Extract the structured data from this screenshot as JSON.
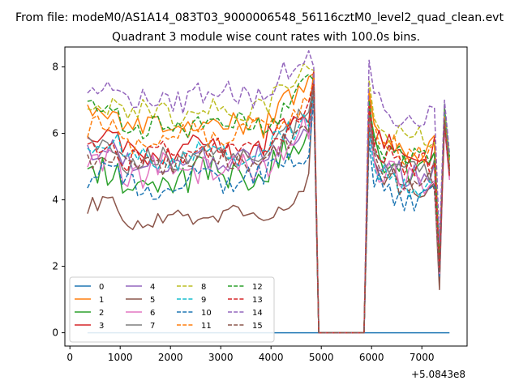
{
  "figure_title": "From file: modeM0/AS1A14_083T03_9000006548_56116cztM0_level2_quad_clean.evt",
  "chart_data": {
    "type": "line",
    "title": "Quadrant 3 module wise count rates with 100.0s bins.",
    "xlabel": "",
    "ylabel": "",
    "x_offset_label": "+5.0843e8",
    "xlim": [
      -100,
      7900
    ],
    "ylim": [
      -0.4,
      8.6
    ],
    "x_ticks": [
      0,
      1000,
      2000,
      3000,
      4000,
      5000,
      6000,
      7000
    ],
    "x_tick_labels": [
      "0",
      "1000",
      "2000",
      "3000",
      "4000",
      "5000",
      "6000",
      "7000"
    ],
    "y_ticks": [
      0,
      2,
      4,
      6,
      8
    ],
    "y_tick_labels": [
      "0",
      "2",
      "4",
      "6",
      "8"
    ],
    "legend_location": "lower-left",
    "legend_columns": 4,
    "x_segments": [
      {
        "start": 350,
        "end": 4850,
        "step": 100
      },
      {
        "start": 4950,
        "end": 5850,
        "step": 100
      },
      {
        "start": 5950,
        "end": 7550,
        "step": 100
      }
    ],
    "series": [
      {
        "name": "0",
        "color": "#1f77b4",
        "dash": "solid",
        "base": 0.0,
        "amp": 0.0,
        "phase": 0,
        "peak": 0.0,
        "post": 0.0,
        "dip": 0.0,
        "late": 0.0
      },
      {
        "name": "1",
        "color": "#ff7f0e",
        "dash": "solid",
        "base": 6.3,
        "amp": 0.35,
        "phase": 1,
        "peak": 7.8,
        "post": 7.3,
        "dip": 2.3,
        "late": 6.6
      },
      {
        "name": "2",
        "color": "#2ca02c",
        "dash": "solid",
        "base": 4.8,
        "amp": 0.45,
        "phase": 2,
        "peak": 7.6,
        "post": 6.7,
        "dip": 1.8,
        "late": 6.8
      },
      {
        "name": "3",
        "color": "#d62728",
        "dash": "solid",
        "base": 5.6,
        "amp": 0.4,
        "phase": 3,
        "peak": 7.9,
        "post": 7.1,
        "dip": 2.0,
        "late": 6.5
      },
      {
        "name": "4",
        "color": "#9467bd",
        "dash": "solid",
        "base": 5.3,
        "amp": 0.35,
        "phase": 4,
        "peak": 7.4,
        "post": 6.5,
        "dip": 1.6,
        "late": 6.3
      },
      {
        "name": "5",
        "color": "#8c564b",
        "dash": "solid",
        "base": 3.5,
        "amp": 0.3,
        "phase": 5,
        "peak": 7.6,
        "post": 6.1,
        "dip": 1.3,
        "late": 6.6
      },
      {
        "name": "6",
        "color": "#e377c2",
        "dash": "solid",
        "base": 5.0,
        "amp": 0.45,
        "phase": 6,
        "peak": 7.3,
        "post": 6.3,
        "dip": 1.7,
        "late": 6.2
      },
      {
        "name": "7",
        "color": "#7f7f7f",
        "dash": "solid",
        "base": 5.4,
        "amp": 0.35,
        "phase": 7,
        "peak": 7.5,
        "post": 6.6,
        "dip": 1.9,
        "late": 6.4
      },
      {
        "name": "8",
        "color": "#bcbd22",
        "dash": "dashed",
        "base": 6.8,
        "amp": 0.35,
        "phase": 8,
        "peak": 7.9,
        "post": 7.6,
        "dip": 2.4,
        "late": 6.8
      },
      {
        "name": "9",
        "color": "#17becf",
        "dash": "dashed",
        "base": 5.4,
        "amp": 0.35,
        "phase": 9,
        "peak": 7.2,
        "post": 6.1,
        "dip": 2.0,
        "late": 6.6
      },
      {
        "name": "10",
        "color": "#1f77b4",
        "dash": "dashed",
        "base": 4.6,
        "amp": 0.35,
        "phase": 10,
        "peak": 7.0,
        "post": 5.8,
        "dip": 1.7,
        "late": 6.4
      },
      {
        "name": "11",
        "color": "#ff7f0e",
        "dash": "dashed",
        "base": 6.0,
        "amp": 0.35,
        "phase": 11,
        "peak": 7.7,
        "post": 7.2,
        "dip": 2.2,
        "late": 6.5
      },
      {
        "name": "12",
        "color": "#2ca02c",
        "dash": "dashed",
        "base": 6.3,
        "amp": 0.35,
        "phase": 12,
        "peak": 7.6,
        "post": 7.0,
        "dip": 2.1,
        "late": 6.9
      },
      {
        "name": "13",
        "color": "#d62728",
        "dash": "dashed",
        "base": 5.5,
        "amp": 0.35,
        "phase": 13,
        "peak": 7.5,
        "post": 6.8,
        "dip": 1.9,
        "late": 6.3
      },
      {
        "name": "14",
        "color": "#9467bd",
        "dash": "dashed",
        "base": 7.2,
        "amp": 0.35,
        "phase": 14,
        "peak": 8.0,
        "post": 8.2,
        "dip": 2.7,
        "late": 7.0
      },
      {
        "name": "15",
        "color": "#8c564b",
        "dash": "dashed",
        "base": 5.2,
        "amp": 0.35,
        "phase": 15,
        "peak": 7.4,
        "post": 6.2,
        "dip": 1.8,
        "late": 6.4
      }
    ]
  }
}
